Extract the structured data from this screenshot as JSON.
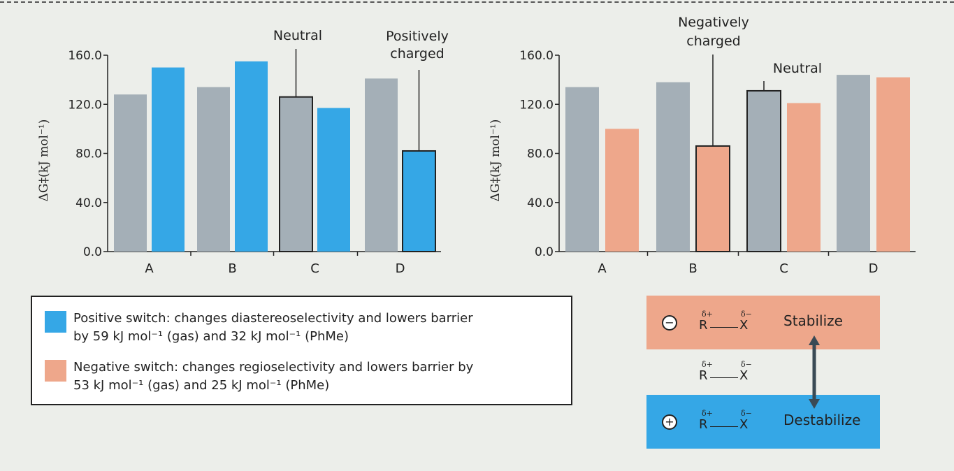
{
  "colors": {
    "neutral_bar": "#a4afb7",
    "positive_switch": "#35a7e6",
    "negative_switch": "#eea78b",
    "outline": "#222222"
  },
  "chart_data": [
    {
      "type": "bar",
      "categories": [
        "A",
        "B",
        "C",
        "D"
      ],
      "ylabel": "ΔG‡(kJ mol⁻¹)",
      "yticks": [
        "0.0",
        "40.0",
        "80.0",
        "120.0",
        "160.0"
      ],
      "ylim": [
        0,
        160
      ],
      "series": [
        {
          "values": [
            128,
            134,
            126,
            141
          ],
          "color": "#a4afb7"
        },
        {
          "values": [
            150,
            155,
            117,
            82
          ],
          "color": "#35a7e6"
        }
      ],
      "outlined_bars": [
        {
          "series": 0,
          "index": 2
        },
        {
          "series": 1,
          "index": 3
        }
      ],
      "annotations": [
        {
          "label": [
            "Neutral"
          ],
          "series": 0,
          "index": 2
        },
        {
          "label": [
            "Positively",
            "charged"
          ],
          "series": 1,
          "index": 3
        }
      ]
    },
    {
      "type": "bar",
      "categories": [
        "A",
        "B",
        "C",
        "D"
      ],
      "ylabel": "ΔG‡(kJ mol⁻¹)",
      "yticks": [
        "0.0",
        "40.0",
        "80.0",
        "120.0",
        "160.0"
      ],
      "ylim": [
        0,
        160
      ],
      "series": [
        {
          "values": [
            134,
            138,
            131,
            144
          ],
          "color": "#a4afb7"
        },
        {
          "values": [
            100,
            86,
            121,
            142
          ],
          "color": "#eea78b"
        }
      ],
      "outlined_bars": [
        {
          "series": 1,
          "index": 1
        },
        {
          "series": 0,
          "index": 2
        }
      ],
      "annotations": [
        {
          "label": [
            "Negatively",
            "charged"
          ],
          "series": 1,
          "index": 1
        },
        {
          "label": [
            "Neutral"
          ],
          "series": 0,
          "index": 2
        }
      ]
    }
  ],
  "legend": {
    "positive": {
      "line1": "Positive switch: changes diastereoselectivity and lowers barrier",
      "line2": "by 59 kJ mol⁻¹ (gas) and 32 kJ mol⁻¹ (PhMe)"
    },
    "negative": {
      "line1": "Negative switch: changes regioselectivity and lowers barrier by",
      "line2": "53 kJ mol⁻¹ (gas) and 25 kJ mol⁻¹ (PhMe)"
    }
  },
  "scheme": {
    "stabilize": {
      "sign": "⊖",
      "label": "Stabilize"
    },
    "destabilize": {
      "sign": "+",
      "label": "Destabilize"
    },
    "bond": {
      "left_atom": "R",
      "right_atom": "X",
      "left_charge": "δ+",
      "right_charge": "δ−"
    }
  }
}
